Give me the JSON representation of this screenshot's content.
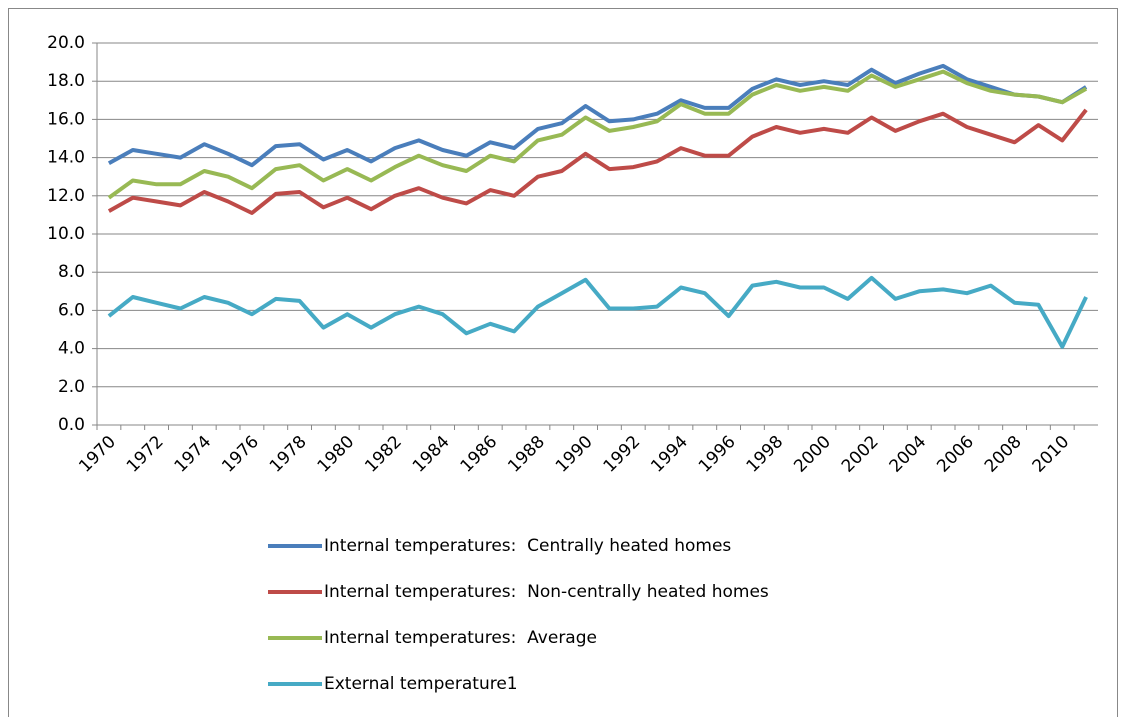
{
  "chart_data": {
    "type": "line",
    "categories": [
      "1970",
      null,
      "1972",
      null,
      "1974",
      null,
      "1976",
      null,
      "1978",
      null,
      "1980",
      null,
      "1982",
      null,
      "1984",
      null,
      "1986",
      null,
      "1988",
      null,
      "1990",
      null,
      "1992",
      null,
      "1994",
      null,
      "1996",
      null,
      "1998",
      null,
      "2000",
      null,
      "2002",
      null,
      "2004",
      null,
      "2006",
      null,
      "2008",
      null,
      "2010",
      null
    ],
    "series": [
      {
        "name": "Internal temperatures:  Centrally heated homes",
        "color": "#4a7ebb",
        "values": [
          13.7,
          14.4,
          14.2,
          14.0,
          14.7,
          14.2,
          13.6,
          14.6,
          14.7,
          13.9,
          14.4,
          13.8,
          14.5,
          14.9,
          14.4,
          14.1,
          14.8,
          14.5,
          15.5,
          15.8,
          16.7,
          15.9,
          16.0,
          16.3,
          17.0,
          16.6,
          16.6,
          17.6,
          18.1,
          17.8,
          18.0,
          17.8,
          18.6,
          17.9,
          18.4,
          18.8,
          18.1,
          17.7,
          17.3,
          17.2,
          16.9,
          17.7
        ]
      },
      {
        "name": "Internal temperatures:  Non-centrally heated homes",
        "color": "#be4b48",
        "values": [
          11.2,
          11.9,
          11.7,
          11.5,
          12.2,
          11.7,
          11.1,
          12.1,
          12.2,
          11.4,
          11.9,
          11.3,
          12.0,
          12.4,
          11.9,
          11.6,
          12.3,
          12.0,
          13.0,
          13.3,
          14.2,
          13.4,
          13.5,
          13.8,
          14.5,
          14.1,
          14.1,
          15.1,
          15.6,
          15.3,
          15.5,
          15.3,
          16.1,
          15.4,
          15.9,
          16.3,
          15.6,
          15.2,
          14.8,
          15.7,
          14.9,
          16.5
        ]
      },
      {
        "name": "Internal temperatures:  Average",
        "color": "#98b954",
        "values": [
          11.9,
          12.8,
          12.6,
          12.6,
          13.3,
          13.0,
          12.4,
          13.4,
          13.6,
          12.8,
          13.4,
          12.8,
          13.5,
          14.1,
          13.6,
          13.3,
          14.1,
          13.8,
          14.9,
          15.2,
          16.1,
          15.4,
          15.6,
          15.9,
          16.8,
          16.3,
          16.3,
          17.3,
          17.8,
          17.5,
          17.7,
          17.5,
          18.3,
          17.7,
          18.1,
          18.5,
          17.9,
          17.5,
          17.3,
          17.2,
          16.9,
          17.6
        ]
      },
      {
        "name": "External temperature1",
        "color": "#46aac5",
        "values": [
          5.7,
          6.7,
          6.4,
          6.1,
          6.7,
          6.4,
          5.8,
          6.6,
          6.5,
          5.1,
          5.8,
          5.1,
          5.8,
          6.2,
          5.8,
          4.8,
          5.3,
          4.9,
          6.2,
          6.9,
          7.6,
          6.1,
          6.1,
          6.2,
          7.2,
          6.9,
          5.7,
          7.3,
          7.5,
          7.2,
          7.2,
          6.6,
          7.7,
          6.6,
          7.0,
          7.1,
          6.9,
          7.3,
          6.4,
          6.3,
          4.1,
          6.7
        ]
      }
    ],
    "ylim": [
      0,
      20
    ],
    "yticks": [
      {
        "value": 0,
        "label": "0.0"
      },
      {
        "value": 2,
        "label": "2.0"
      },
      {
        "value": 4,
        "label": "4.0"
      },
      {
        "value": 6,
        "label": "6.0"
      },
      {
        "value": 8,
        "label": "8.0"
      },
      {
        "value": 10,
        "label": "10.0"
      },
      {
        "value": 12,
        "label": "12.0"
      },
      {
        "value": 14,
        "label": "14.0"
      },
      {
        "value": 16,
        "label": "16.0"
      },
      {
        "value": 18,
        "label": "18.0"
      },
      {
        "value": 20,
        "label": "20.0"
      }
    ],
    "grid": true,
    "legend": "bottom"
  }
}
